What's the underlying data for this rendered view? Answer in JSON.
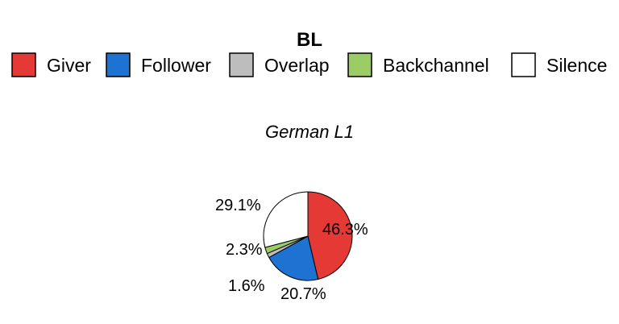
{
  "chart_data": {
    "type": "pie",
    "title": "BL",
    "subtitle": "German L1",
    "legend_position": "top",
    "slices": [
      {
        "label": "Giver",
        "value": 46.3,
        "display": "46.3%",
        "color": "#e53935"
      },
      {
        "label": "Follower",
        "value": 20.7,
        "display": "20.7%",
        "color": "#1e73d2"
      },
      {
        "label": "Overlap",
        "value": 1.6,
        "display": "1.6%",
        "color": "#bdbdbd"
      },
      {
        "label": "Backchannel",
        "value": 2.3,
        "display": "2.3%",
        "color": "#9ccc65"
      },
      {
        "label": "Silence",
        "value": 29.1,
        "display": "29.1%",
        "color": "#ffffff"
      }
    ]
  }
}
